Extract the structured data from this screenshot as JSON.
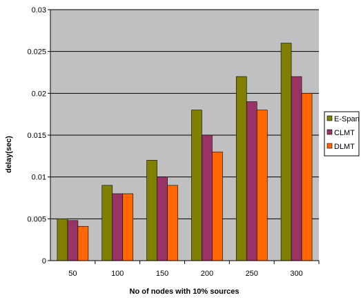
{
  "chart_data": {
    "type": "bar",
    "xlabel": "No of nodes with 10% sources",
    "ylabel": "delay(sec)",
    "categories": [
      "50",
      "100",
      "150",
      "200",
      "250",
      "300"
    ],
    "series": [
      {
        "name": "E-Span",
        "color": "#7f7f00",
        "values": [
          0.005,
          0.009,
          0.012,
          0.018,
          0.022,
          0.026
        ]
      },
      {
        "name": "CLMT",
        "color": "#993366",
        "values": [
          0.0048,
          0.008,
          0.01,
          0.015,
          0.019,
          0.022
        ]
      },
      {
        "name": "DLMT",
        "color": "#ff6600",
        "values": [
          0.0041,
          0.008,
          0.009,
          0.013,
          0.018,
          0.02
        ]
      }
    ],
    "yticks": [
      "0",
      "0.005",
      "0.01",
      "0.015",
      "0.02",
      "0.025",
      "0.03"
    ],
    "ylim": [
      0,
      0.03
    ],
    "grid": true,
    "plot_background": "#c0c0c0",
    "legend_position": "right"
  }
}
